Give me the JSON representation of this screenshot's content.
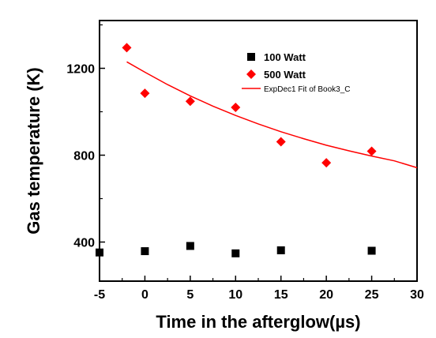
{
  "chart_data": {
    "type": "scatter",
    "title": "",
    "xlabel": "Time in the afterglow(µs)",
    "ylabel": "Gas temperature (K)",
    "xlim": [
      -5,
      30
    ],
    "ylim": [
      220,
      1420
    ],
    "xticks": [
      -5,
      0,
      5,
      10,
      15,
      20,
      25,
      30
    ],
    "yticks": [
      400,
      800,
      1200
    ],
    "grid": false,
    "legend_position": "top-right",
    "series": [
      {
        "name": "100 Watt",
        "marker": "square",
        "color": "#000000",
        "x": [
          -5,
          0,
          5,
          10,
          15,
          25
        ],
        "y": [
          352,
          358,
          382,
          348,
          362,
          360
        ]
      },
      {
        "name": "500 Watt",
        "marker": "diamond",
        "color": "#ff0000",
        "x": [
          -2,
          0,
          5,
          10,
          15,
          20,
          25
        ],
        "y": [
          1295,
          1085,
          1048,
          1020,
          862,
          765,
          818
        ]
      }
    ],
    "fit": {
      "name": "ExpDec1 Fit of Book3_C",
      "color": "#ff0000",
      "x": [
        -2,
        0,
        2.5,
        5,
        7.5,
        10,
        12.5,
        15,
        17.5,
        20,
        22.5,
        25,
        27.5,
        30
      ],
      "y": [
        1230,
        1182,
        1125,
        1073,
        1026,
        983,
        944,
        908,
        876,
        846,
        820,
        796,
        774,
        742
      ]
    }
  }
}
